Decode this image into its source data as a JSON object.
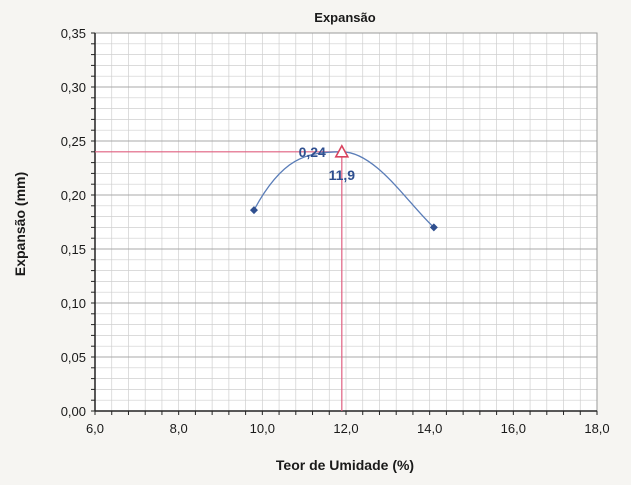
{
  "chart_data": {
    "type": "scatter",
    "title": "Expansão",
    "xlabel": "Teor de Umidade (%)",
    "ylabel": "Expansão (mm)",
    "xlim": [
      6.0,
      18.0
    ],
    "ylim": [
      0.0,
      0.35
    ],
    "x_ticks": [
      "6,0",
      "8,0",
      "10,0",
      "12,0",
      "14,0",
      "16,0",
      "18,0"
    ],
    "x_tick_values": [
      6,
      8,
      10,
      12,
      14,
      16,
      18
    ],
    "y_ticks": [
      "0,00",
      "0,05",
      "0,10",
      "0,15",
      "0,20",
      "0,25",
      "0,30",
      "0,35"
    ],
    "y_tick_values": [
      0,
      0.05,
      0.1,
      0.15,
      0.2,
      0.25,
      0.3,
      0.35
    ],
    "grid": true,
    "series": [
      {
        "x": [
          9.8,
          11.9,
          14.1
        ],
        "y": [
          0.186,
          0.24,
          0.17
        ],
        "marker": "diamond",
        "color": "#2f4f8f"
      }
    ],
    "optimum": {
      "x": 11.9,
      "y": 0.24,
      "x_label": "11,9",
      "y_label": "0,24",
      "marker": "triangle",
      "color": "#d9435f"
    },
    "curve_color": "#5a7db8",
    "guide_color": "#e06080"
  }
}
